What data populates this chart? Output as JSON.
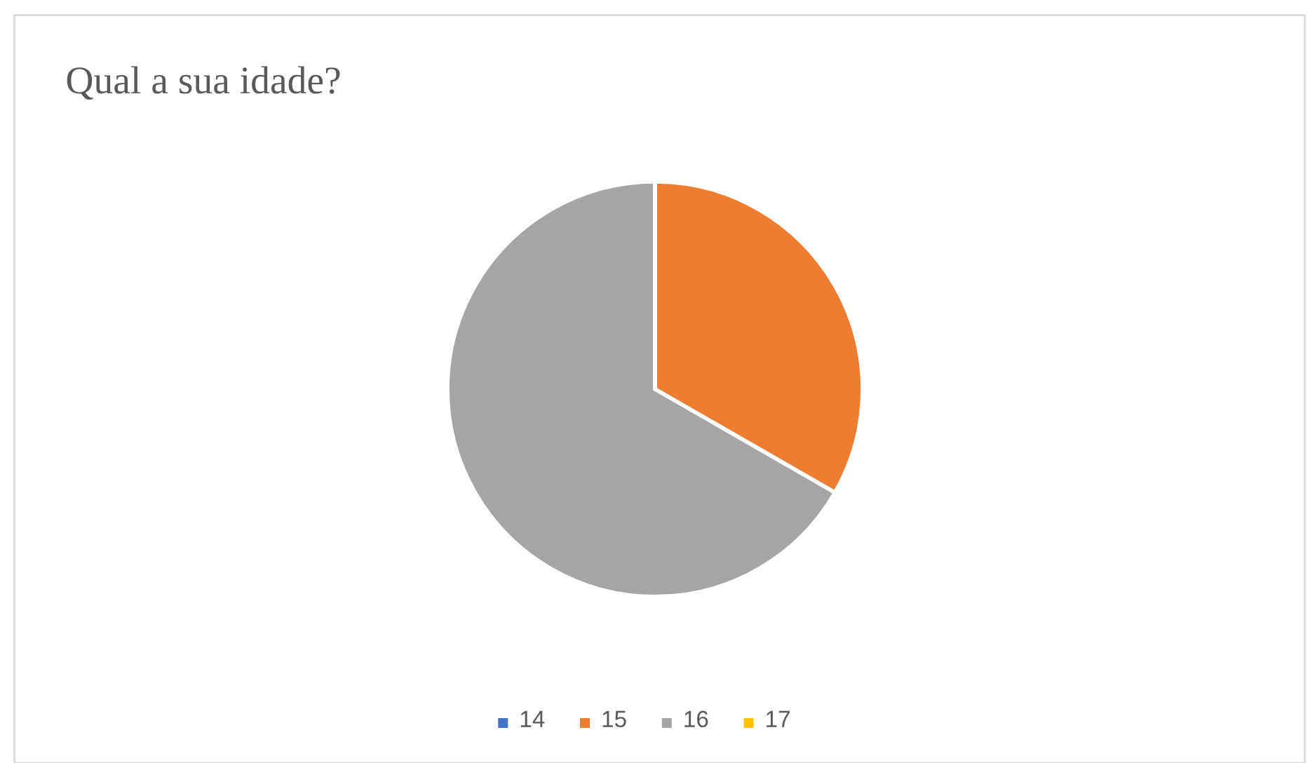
{
  "chart_data": {
    "type": "pie",
    "title": "Qual a sua idade?",
    "categories": [
      "14",
      "15",
      "16",
      "17"
    ],
    "values": [
      0,
      33.3,
      66.7,
      0
    ],
    "colors": [
      "#4472c4",
      "#ed7d31",
      "#a5a5a5",
      "#ffc000"
    ],
    "legend": "bottom"
  }
}
